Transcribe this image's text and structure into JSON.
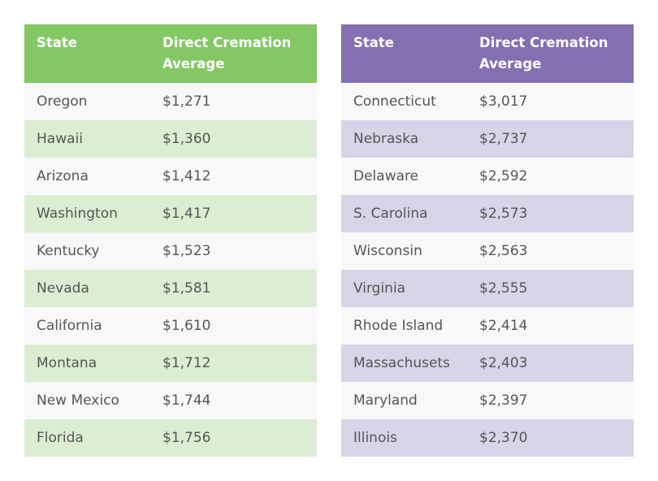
{
  "tables": [
    {
      "header": {
        "col1": "State",
        "col2": "Direct Cremation Average"
      },
      "rows": [
        {
          "state": "Oregon",
          "price": "$1,271"
        },
        {
          "state": "Hawaii",
          "price": "$1,360"
        },
        {
          "state": "Arizona",
          "price": "$1,412"
        },
        {
          "state": "Washington",
          "price": "$1,417"
        },
        {
          "state": "Kentucky",
          "price": "$1,523"
        },
        {
          "state": "Nevada",
          "price": "$1,581"
        },
        {
          "state": "California",
          "price": "$1,610"
        },
        {
          "state": "Montana",
          "price": "$1,712"
        },
        {
          "state": "New Mexico",
          "price": "$1,744"
        },
        {
          "state": "Florida",
          "price": "$1,756"
        }
      ]
    },
    {
      "header": {
        "col1": "State",
        "col2": "Direct Cremation Average"
      },
      "rows": [
        {
          "state": "Connecticut",
          "price": "$3,017"
        },
        {
          "state": "Nebraska",
          "price": "$2,737"
        },
        {
          "state": "Delaware",
          "price": "$2,592"
        },
        {
          "state": "S. Carolina",
          "price": "$2,573"
        },
        {
          "state": "Wisconsin",
          "price": "$2,563"
        },
        {
          "state": "Virginia",
          "price": "$2,555"
        },
        {
          "state": "Rhode Island",
          "price": "$2,414"
        },
        {
          "state": "Massachusets",
          "price": "$2,403"
        },
        {
          "state": "Maryland",
          "price": "$2,397"
        },
        {
          "state": "Illinois",
          "price": "$2,370"
        }
      ]
    }
  ],
  "colors": {
    "left_header": "#84c765",
    "left_stripe": "#dbeed3",
    "right_header": "#846fb1",
    "right_stripe": "#dad4e8",
    "odd_row": "#f8f8f8"
  }
}
